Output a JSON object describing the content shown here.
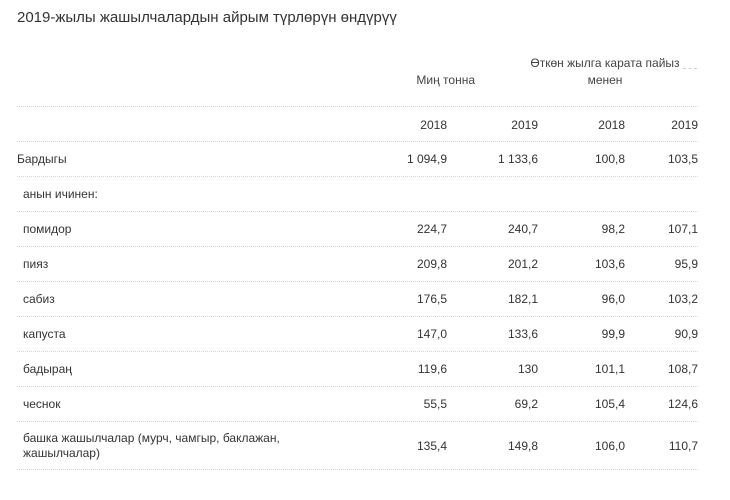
{
  "title": "2019-жылы жашылчалардын айрым түрлөрүн өндүрүү",
  "headers": {
    "group_left": "Миң тонна",
    "group_right": "Өткөн  жылга карата пайыз менен",
    "years": [
      "2018",
      "2019",
      "2018",
      "2019"
    ]
  },
  "rows": [
    {
      "label": "Бардыгы",
      "values": [
        "1 094,9",
        "1 133,6",
        "100,8",
        "103,5"
      ]
    },
    {
      "label": "анын ичинен:",
      "values": [
        "",
        "",
        "",
        ""
      ]
    },
    {
      "label": "помидор",
      "values": [
        "224,7",
        "240,7",
        "98,2",
        "107,1"
      ]
    },
    {
      "label": "пияз",
      "values": [
        "209,8",
        "201,2",
        "103,6",
        "95,9"
      ]
    },
    {
      "label": "сабиз",
      "values": [
        "176,5",
        "182,1",
        "96,0",
        "103,2"
      ]
    },
    {
      "label": "капуста",
      "values": [
        "147,0",
        "133,6",
        "99,9",
        "90,9"
      ]
    },
    {
      "label": "бадыраң",
      "values": [
        "119,6",
        "130",
        "101,1",
        "108,7"
      ]
    },
    {
      "label": "чеснок",
      "values": [
        "55,5",
        "69,2",
        "105,4",
        "124,6"
      ]
    },
    {
      "label": "башка жашылчалар (мурч, чамгыр, баклажан, жашылчалар)",
      "values": [
        "135,4",
        "149,8",
        "106,0",
        "110,7"
      ]
    }
  ]
}
